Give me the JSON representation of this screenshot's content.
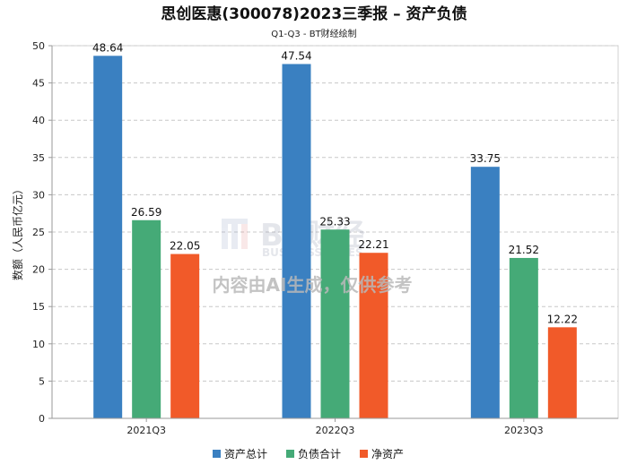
{
  "chart_data": {
    "type": "bar",
    "title": "思创医惠(300078)2023三季报 – 资产负债",
    "subtitle": "Q1-Q3 - BT财经绘制",
    "ylabel": "数额（人民币亿元）",
    "xlabel": "",
    "categories": [
      "2021Q3",
      "2022Q3",
      "2023Q3"
    ],
    "series": [
      {
        "name": "资产总计",
        "color": "#3a80c1",
        "values": [
          48.64,
          47.54,
          33.75
        ]
      },
      {
        "name": "负债合计",
        "color": "#45aa77",
        "values": [
          26.59,
          25.33,
          21.52
        ]
      },
      {
        "name": "净资产",
        "color": "#f15a29",
        "values": [
          22.05,
          22.21,
          12.22
        ]
      }
    ],
    "data_labels": [
      [
        "48.64",
        "26.59",
        "22.05"
      ],
      [
        "47.54",
        "25.33",
        "22.21"
      ],
      [
        "33.75",
        "21.52",
        "12.22"
      ]
    ],
    "ylim": [
      0,
      50
    ],
    "yticks": [
      0,
      5,
      10,
      15,
      20,
      25,
      30,
      35,
      40,
      45,
      50
    ],
    "ytick_labels": [
      "0",
      "5",
      "10",
      "15",
      "20",
      "25",
      "30",
      "35",
      "40",
      "45",
      "50"
    ],
    "grid": true,
    "legend_position": "bottom-center"
  },
  "watermark": {
    "logo_text": "BT财经",
    "logo_subtext": "BUSINESS TIMES",
    "notice": "内容由AI生成，仅供参考"
  }
}
